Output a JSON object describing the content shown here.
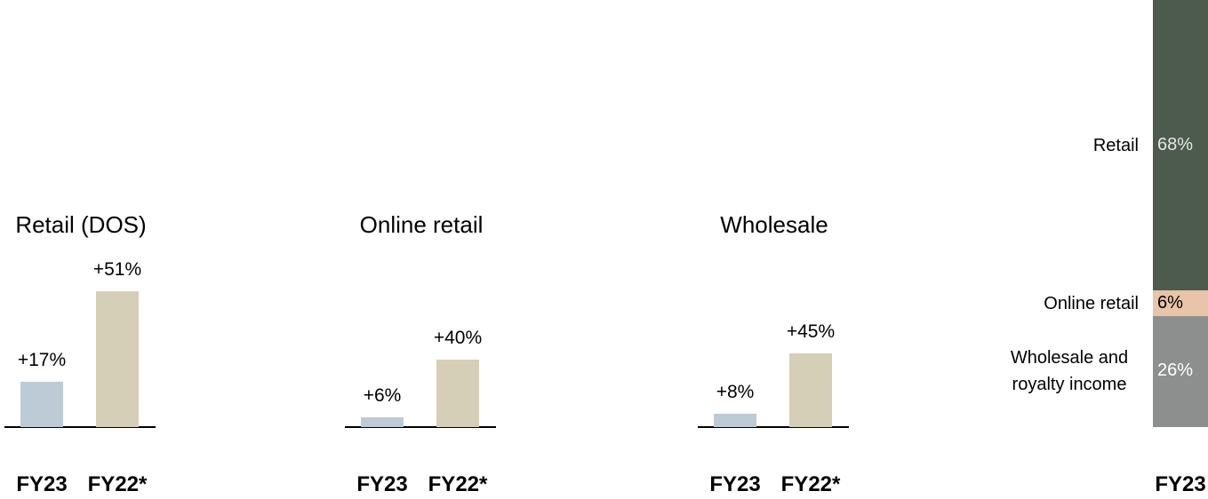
{
  "chart_data": [
    {
      "type": "bar",
      "title": "Retail (DOS)",
      "categories": [
        "FY23",
        "FY22*"
      ],
      "values": [
        17,
        51
      ],
      "value_labels": [
        "+17%",
        "+51%"
      ],
      "colors": [
        "#bccbd6",
        "#d4cfb6"
      ]
    },
    {
      "type": "bar",
      "title": "Online retail",
      "categories": [
        "FY23",
        "FY22*"
      ],
      "values": [
        6,
        40
      ],
      "value_labels": [
        "+6%",
        "+40%"
      ],
      "colors": [
        "#bccbd6",
        "#d4cfb6"
      ]
    },
    {
      "type": "bar",
      "title": "Wholesale",
      "categories": [
        "FY23",
        "FY22*"
      ],
      "values": [
        8,
        45
      ],
      "value_labels": [
        "+8%",
        "+45%"
      ],
      "colors": [
        "#bccbd6",
        "#d4cfb6"
      ]
    },
    {
      "type": "stacked_bar",
      "categories": [
        "FY23"
      ],
      "series": [
        {
          "name": "Wholesale and royalty income",
          "color": "#8c8f8e",
          "label_color": "#ffffff",
          "values": [
            26
          ],
          "value_labels": [
            "26%"
          ]
        },
        {
          "name": "Online retail",
          "color": "#e8c4a8",
          "label_color": "#000000",
          "values": [
            6
          ],
          "value_labels": [
            "6%"
          ]
        },
        {
          "name": "Retail",
          "color": "#4d5b4f",
          "label_color": "#e6e6e6",
          "values": [
            68
          ],
          "value_labels": [
            "68%"
          ]
        }
      ]
    }
  ]
}
